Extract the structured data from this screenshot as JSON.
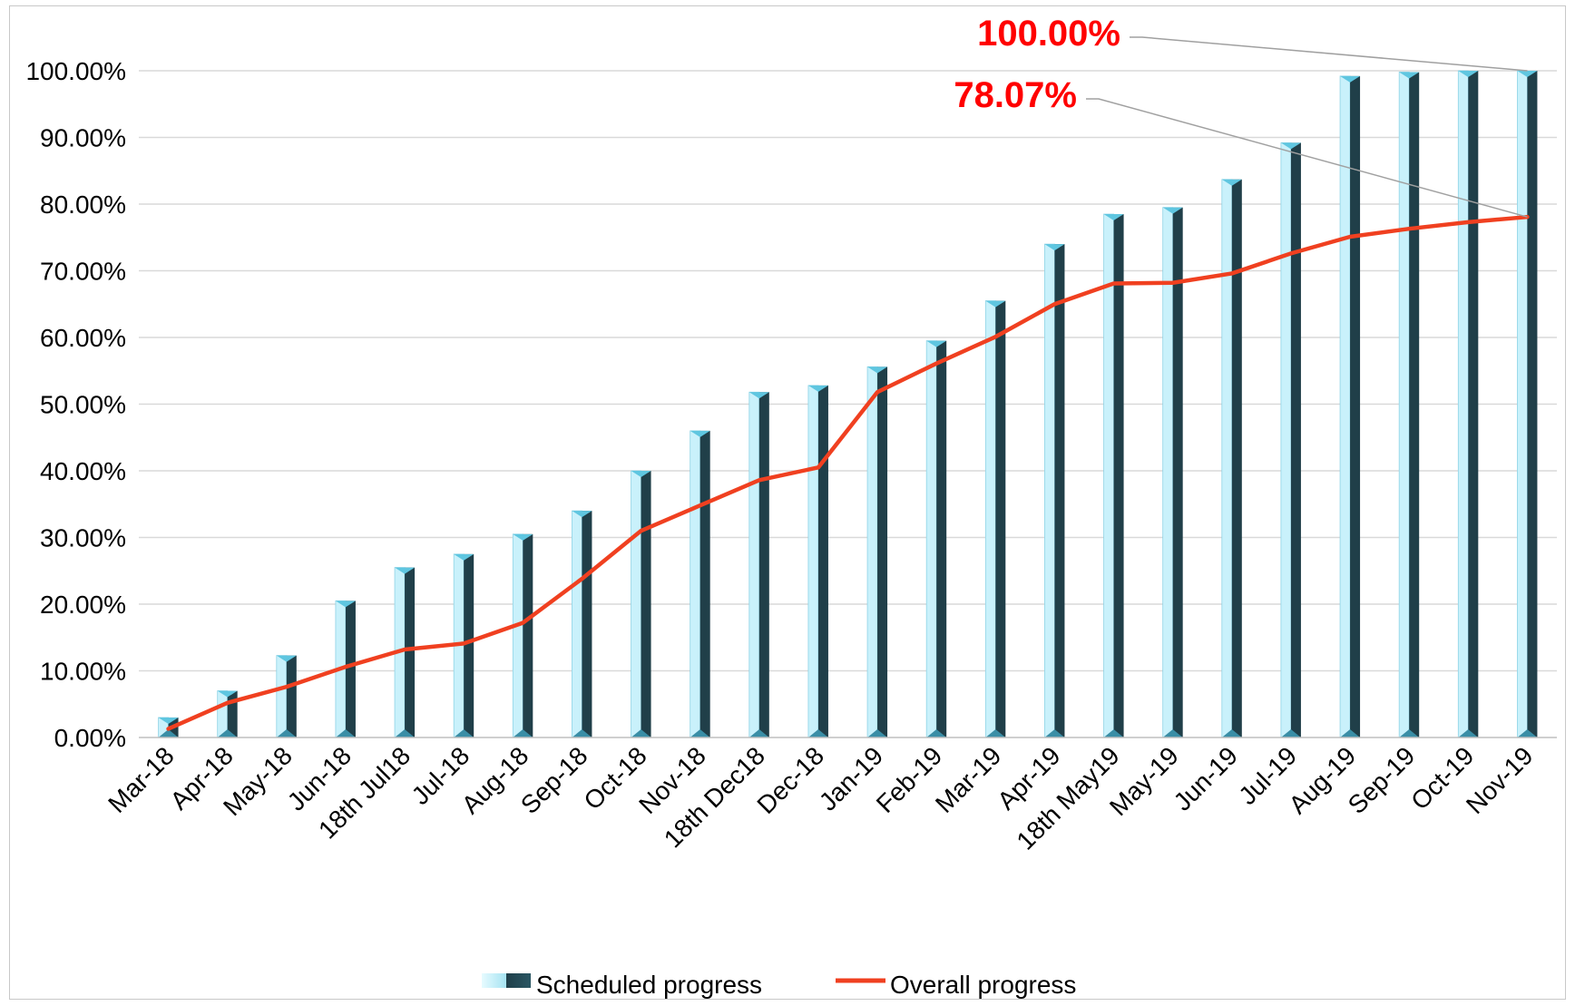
{
  "chart_data": {
    "type": "bar",
    "categories": [
      "Mar-18",
      "Apr-18",
      "May-18",
      "Jun-18",
      "18th Jul18",
      "Jul-18",
      "Aug-18",
      "Sep-18",
      "Oct-18",
      "Nov-18",
      "18th Dec18",
      "Dec-18",
      "Jan-19",
      "Feb-19",
      "Mar-19",
      "Apr-19",
      "18th May19",
      "May-19",
      "Jun-19",
      "Jul-19",
      "Aug-19",
      "Sep-19",
      "Oct-19",
      "Nov-19"
    ],
    "series": [
      {
        "name": "Scheduled progress",
        "kind": "bar",
        "color": "#1f3f4a",
        "highlight_color": "#bfeefb",
        "values": [
          3,
          7,
          12.3,
          20.5,
          25.5,
          27.5,
          30.5,
          34,
          40,
          46,
          51.8,
          52.8,
          55.6,
          59.5,
          65.5,
          74,
          78.5,
          79.5,
          83.7,
          89.2,
          99.2,
          99.8,
          100,
          100
        ]
      },
      {
        "name": "Overall progress",
        "kind": "line",
        "color": "#f04020",
        "values": [
          1.3,
          5.2,
          7.6,
          10.6,
          13.2,
          14.1,
          17.2,
          23.8,
          31.0,
          34.8,
          38.6,
          40.5,
          51.8,
          56.1,
          60.1,
          65.0,
          68.1,
          68.2,
          69.6,
          72.6,
          75.1,
          76.3,
          77.3,
          78.07
        ]
      }
    ],
    "ylim": [
      0,
      100
    ],
    "yticks": [
      "0.00%",
      "10.00%",
      "20.00%",
      "30.00%",
      "40.00%",
      "50.00%",
      "60.00%",
      "70.00%",
      "80.00%",
      "90.00%",
      "100.00%"
    ],
    "grid": true,
    "legend_position": "bottom",
    "annotations": [
      {
        "text": "100.00%",
        "target_series": "Scheduled progress",
        "target_category": "Nov-19",
        "color": "#ff0000"
      },
      {
        "text": "78.07%",
        "target_series": "Overall progress",
        "target_category": "Nov-19",
        "color": "#ff0000"
      }
    ]
  }
}
